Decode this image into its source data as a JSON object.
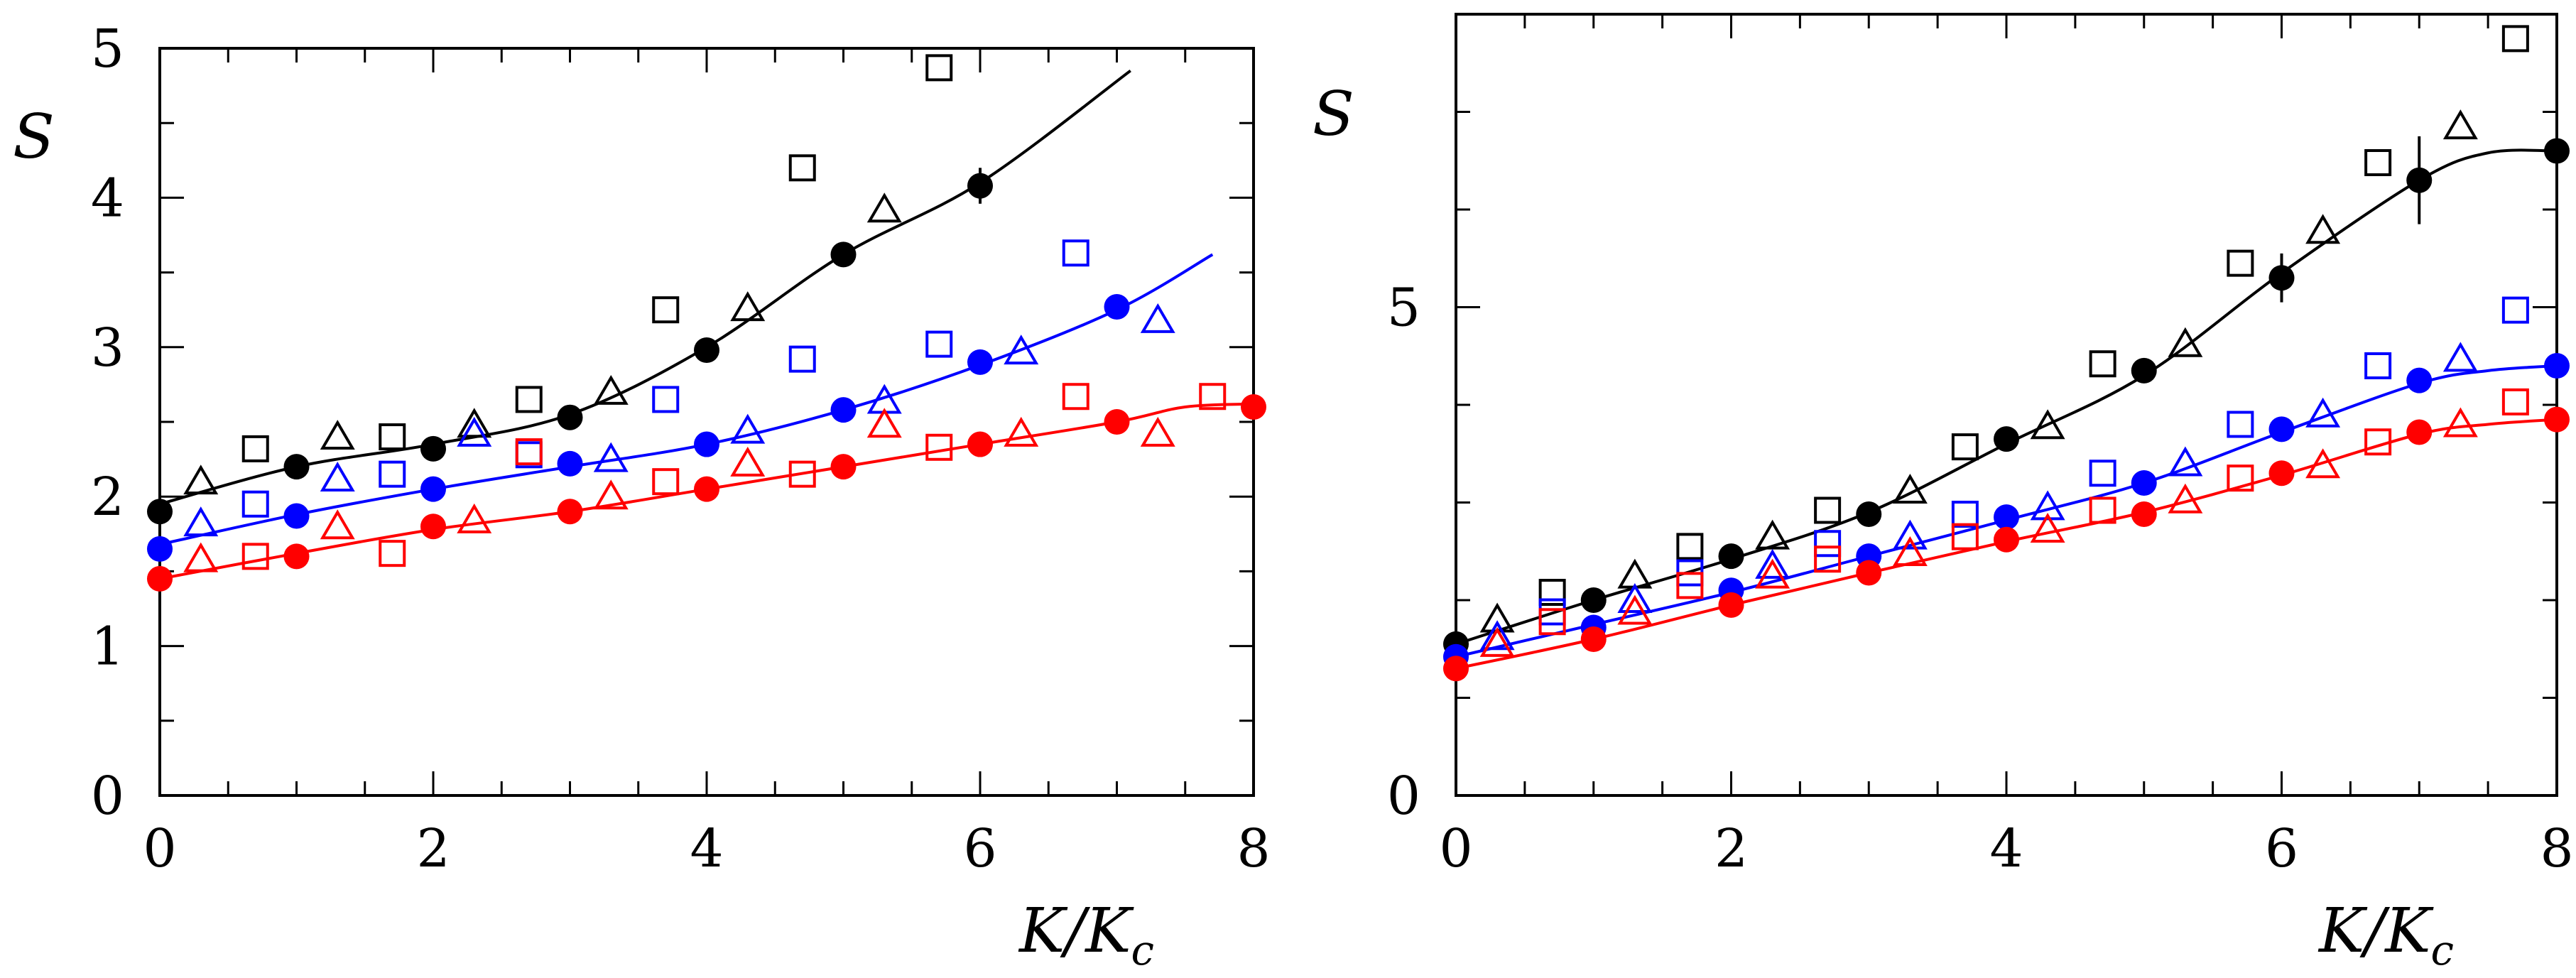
{
  "colors": {
    "black": "#000000",
    "blue": "#0000ff",
    "red": "#ff0000"
  },
  "chart_data": [
    {
      "type": "scatter",
      "panel": "left",
      "xlabel": "K/K_c",
      "xlabel_parts": {
        "main": "K/K",
        "sub": "c"
      },
      "ylabel": "S",
      "xlim": [
        0,
        8
      ],
      "ylim": [
        0,
        5
      ],
      "xticks": [
        "0",
        "2",
        "4",
        "6",
        "8"
      ],
      "yticks": [
        "0",
        "1",
        "2",
        "3",
        "4",
        "5"
      ],
      "series": [
        {
          "name": "black-filled",
          "color": "#000000",
          "marker": "circle-filled",
          "x": [
            0,
            1,
            2,
            3,
            4,
            5,
            6
          ],
          "y": [
            1.9,
            2.2,
            2.32,
            2.53,
            2.98,
            3.62,
            4.08
          ],
          "err": [
            0,
            0,
            0,
            0,
            0,
            0.08,
            0.12
          ]
        },
        {
          "name": "black-squares",
          "color": "#000000",
          "marker": "square-open",
          "x": [
            0.7,
            1.7,
            2.7,
            3.7,
            4.7,
            5.7
          ],
          "y": [
            2.32,
            2.4,
            2.65,
            3.25,
            4.2,
            4.87
          ]
        },
        {
          "name": "black-triangles",
          "color": "#000000",
          "marker": "triangle-open",
          "x": [
            0.3,
            1.3,
            2.3,
            3.3,
            4.3,
            5.3
          ],
          "y": [
            2.1,
            2.4,
            2.48,
            2.7,
            3.26,
            3.92
          ]
        },
        {
          "name": "black-line",
          "color": "#000000",
          "marker": "line",
          "x": [
            0,
            1,
            2,
            3,
            4,
            5,
            6,
            7.1
          ],
          "y": [
            1.95,
            2.2,
            2.35,
            2.55,
            3.0,
            3.62,
            4.1,
            4.85
          ]
        },
        {
          "name": "blue-filled",
          "color": "#0000ff",
          "marker": "circle-filled",
          "x": [
            0,
            1,
            2,
            3,
            4,
            5,
            6,
            7
          ],
          "y": [
            1.65,
            1.87,
            2.05,
            2.22,
            2.35,
            2.58,
            2.9,
            3.27
          ]
        },
        {
          "name": "blue-squares",
          "color": "#0000ff",
          "marker": "square-open",
          "x": [
            0.7,
            1.7,
            2.7,
            3.7,
            4.7,
            5.7,
            6.7
          ],
          "y": [
            1.95,
            2.15,
            2.28,
            2.65,
            2.92,
            3.02,
            3.63
          ]
        },
        {
          "name": "blue-triangles",
          "color": "#0000ff",
          "marker": "triangle-open",
          "x": [
            0.3,
            1.3,
            2.3,
            3.3,
            4.3,
            5.3,
            6.3,
            7.3
          ],
          "y": [
            1.82,
            2.12,
            2.42,
            2.25,
            2.44,
            2.64,
            2.97,
            3.18
          ]
        },
        {
          "name": "blue-line",
          "color": "#0000ff",
          "marker": "line",
          "x": [
            0,
            1,
            2,
            3,
            4,
            5,
            6,
            7,
            7.7
          ],
          "y": [
            1.68,
            1.88,
            2.05,
            2.2,
            2.35,
            2.58,
            2.88,
            3.25,
            3.62
          ]
        },
        {
          "name": "red-filled",
          "color": "#ff0000",
          "marker": "circle-filled",
          "x": [
            0,
            1,
            2,
            3,
            4,
            5,
            6,
            7,
            8
          ],
          "y": [
            1.45,
            1.6,
            1.8,
            1.9,
            2.05,
            2.2,
            2.35,
            2.5,
            2.6
          ]
        },
        {
          "name": "red-squares",
          "color": "#ff0000",
          "marker": "square-open",
          "x": [
            0.7,
            1.7,
            2.7,
            3.7,
            4.7,
            5.7,
            6.7,
            7.7
          ],
          "y": [
            1.6,
            1.62,
            2.3,
            2.1,
            2.15,
            2.33,
            2.67,
            2.67
          ]
        },
        {
          "name": "red-triangles",
          "color": "#ff0000",
          "marker": "triangle-open",
          "x": [
            0.3,
            1.3,
            2.3,
            3.3,
            4.3,
            5.3,
            6.3,
            7.3
          ],
          "y": [
            1.58,
            1.8,
            1.84,
            2.0,
            2.22,
            2.48,
            2.42,
            2.42
          ]
        },
        {
          "name": "red-line",
          "color": "#ff0000",
          "marker": "line",
          "x": [
            0,
            1,
            2,
            3,
            4,
            5,
            6,
            7,
            7.5,
            8
          ],
          "y": [
            1.45,
            1.62,
            1.78,
            1.9,
            2.05,
            2.2,
            2.35,
            2.5,
            2.6,
            2.62
          ]
        }
      ]
    },
    {
      "type": "scatter",
      "panel": "right",
      "xlabel": "K/K_c",
      "xlabel_parts": {
        "main": "K/K",
        "sub": "c"
      },
      "ylabel": "S",
      "xlim": [
        0,
        8
      ],
      "ylim": [
        0,
        8
      ],
      "xticks": [
        "0",
        "2",
        "4",
        "6",
        "8"
      ],
      "yticks": [
        "0",
        "5"
      ],
      "series": [
        {
          "name": "black-filled",
          "color": "#000000",
          "marker": "circle-filled",
          "x": [
            0,
            1,
            2,
            3,
            4,
            5,
            6,
            7,
            8
          ],
          "y": [
            1.55,
            2.0,
            2.45,
            2.88,
            3.65,
            4.35,
            5.3,
            6.3,
            6.6
          ],
          "err": [
            0,
            0,
            0,
            0,
            0,
            0.12,
            0.25,
            0.45,
            0
          ]
        },
        {
          "name": "black-squares",
          "color": "#000000",
          "marker": "square-open",
          "x": [
            0.7,
            1.7,
            2.7,
            3.7,
            4.7,
            5.7,
            6.7,
            7.7
          ],
          "y": [
            2.08,
            2.55,
            2.92,
            3.57,
            4.42,
            5.45,
            6.48,
            7.75
          ]
        },
        {
          "name": "black-triangles",
          "color": "#000000",
          "marker": "triangle-open",
          "x": [
            0.3,
            1.3,
            2.3,
            3.3,
            4.3,
            5.3,
            6.3,
            7.3
          ],
          "y": [
            1.8,
            2.25,
            2.65,
            3.12,
            3.78,
            4.62,
            5.78,
            6.85
          ]
        },
        {
          "name": "black-line",
          "color": "#000000",
          "marker": "line",
          "x": [
            0,
            1,
            2,
            3,
            4,
            5,
            6,
            7,
            7.5,
            8
          ],
          "y": [
            1.55,
            2.0,
            2.42,
            2.9,
            3.6,
            4.3,
            5.35,
            6.3,
            6.58,
            6.6
          ]
        },
        {
          "name": "blue-filled",
          "color": "#0000ff",
          "marker": "circle-filled",
          "x": [
            0,
            1,
            2,
            3,
            4,
            5,
            6,
            7,
            8
          ],
          "y": [
            1.42,
            1.72,
            2.1,
            2.45,
            2.85,
            3.2,
            3.75,
            4.25,
            4.4
          ]
        },
        {
          "name": "blue-squares",
          "color": "#0000ff",
          "marker": "square-open",
          "x": [
            0.7,
            1.7,
            2.7,
            3.7,
            4.7,
            5.7,
            6.7,
            7.7
          ],
          "y": [
            1.88,
            2.28,
            2.58,
            2.88,
            3.3,
            3.8,
            4.4,
            4.97
          ]
        },
        {
          "name": "blue-triangles",
          "color": "#0000ff",
          "marker": "triangle-open",
          "x": [
            0.3,
            1.3,
            2.3,
            3.3,
            4.3,
            5.3,
            6.3,
            7.3
          ],
          "y": [
            1.62,
            2.0,
            2.35,
            2.65,
            2.95,
            3.4,
            3.9,
            4.47
          ]
        },
        {
          "name": "blue-line",
          "color": "#0000ff",
          "marker": "line",
          "x": [
            0,
            1,
            2,
            3,
            4,
            5,
            6,
            7,
            7.5,
            8
          ],
          "y": [
            1.42,
            1.75,
            2.08,
            2.45,
            2.82,
            3.2,
            3.72,
            4.22,
            4.35,
            4.4
          ]
        },
        {
          "name": "red-filled",
          "color": "#ff0000",
          "marker": "circle-filled",
          "x": [
            0,
            1,
            2,
            3,
            4,
            5,
            6,
            7,
            8
          ],
          "y": [
            1.3,
            1.6,
            1.95,
            2.28,
            2.62,
            2.88,
            3.3,
            3.72,
            3.85
          ]
        },
        {
          "name": "red-squares",
          "color": "#ff0000",
          "marker": "square-open",
          "x": [
            0.7,
            1.7,
            2.7,
            3.7,
            4.7,
            5.7,
            6.7,
            7.7
          ],
          "y": [
            1.78,
            2.15,
            2.42,
            2.65,
            2.92,
            3.25,
            3.62,
            4.03
          ]
        },
        {
          "name": "red-triangles",
          "color": "#ff0000",
          "marker": "triangle-open",
          "x": [
            0.3,
            1.3,
            2.3,
            3.3,
            4.3,
            5.3,
            6.3,
            7.3
          ],
          "y": [
            1.55,
            1.88,
            2.25,
            2.48,
            2.72,
            3.02,
            3.38,
            3.8
          ]
        },
        {
          "name": "red-line",
          "color": "#ff0000",
          "marker": "line",
          "x": [
            0,
            1,
            2,
            3,
            4,
            5,
            6,
            7,
            7.5,
            8
          ],
          "y": [
            1.3,
            1.6,
            1.95,
            2.28,
            2.6,
            2.9,
            3.28,
            3.7,
            3.8,
            3.85
          ]
        }
      ]
    }
  ]
}
